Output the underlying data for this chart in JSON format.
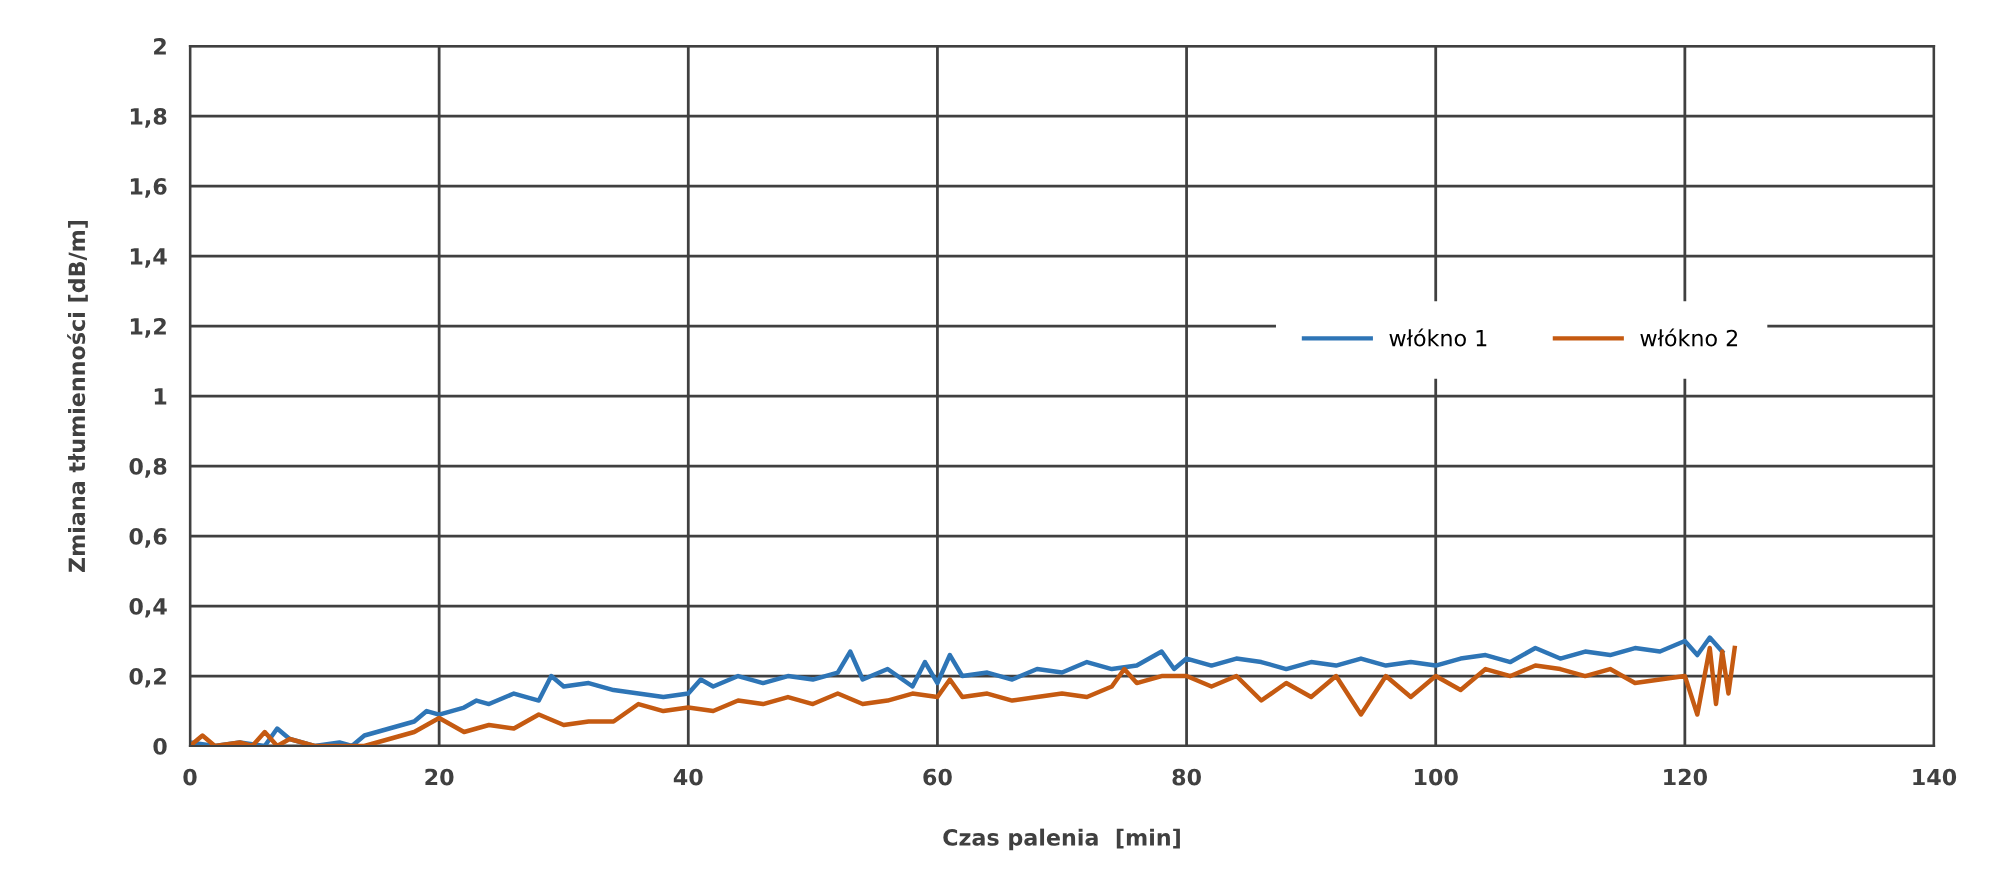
{
  "chart_data": {
    "type": "line",
    "xlabel": "Czas palenia  [min]",
    "ylabel": "Zmiana tłumienności [dB/m]",
    "xlim": [
      0,
      140
    ],
    "xticks": [
      0,
      20,
      40,
      60,
      80,
      100,
      120,
      140
    ],
    "ylim": [
      0,
      2
    ],
    "yticks": [
      0,
      {
        "value": 0.2,
        "label": "0,2"
      },
      {
        "value": 0.4,
        "label": "0,4"
      },
      {
        "value": 0.6,
        "label": "0,6"
      },
      {
        "value": 0.8,
        "label": "0,8"
      },
      1,
      {
        "value": 1.2,
        "label": "1,2"
      },
      {
        "value": 1.4,
        "label": "1,4"
      },
      {
        "value": 1.6,
        "label": "1,6"
      },
      {
        "value": 1.8,
        "label": "1,8"
      },
      2
    ],
    "grid": true,
    "legend": "right",
    "line_style": "solid",
    "marker": "none",
    "series": [
      {
        "name": "włókno 1",
        "color": "#2e75b6",
        "x": [
          0,
          2,
          4,
          6,
          7,
          8,
          10,
          12,
          13,
          14,
          16,
          18,
          19,
          20,
          22,
          23,
          24,
          26,
          28,
          29,
          30,
          32,
          34,
          36,
          38,
          40,
          41,
          42,
          44,
          46,
          48,
          50,
          52,
          53,
          54,
          56,
          58,
          59,
          60,
          61,
          62,
          64,
          66,
          68,
          70,
          72,
          74,
          76,
          78,
          79,
          80,
          82,
          84,
          86,
          88,
          90,
          92,
          94,
          96,
          98,
          100,
          102,
          104,
          106,
          108,
          110,
          112,
          114,
          116,
          118,
          120,
          121,
          122,
          123
        ],
        "values": [
          0.01,
          0.0,
          0.01,
          0.0,
          0.05,
          0.02,
          0.0,
          0.01,
          0.0,
          0.03,
          0.05,
          0.07,
          0.1,
          0.09,
          0.11,
          0.13,
          0.12,
          0.15,
          0.13,
          0.2,
          0.17,
          0.18,
          0.16,
          0.15,
          0.14,
          0.15,
          0.19,
          0.17,
          0.2,
          0.18,
          0.2,
          0.19,
          0.21,
          0.27,
          0.19,
          0.22,
          0.17,
          0.24,
          0.18,
          0.26,
          0.2,
          0.21,
          0.19,
          0.22,
          0.21,
          0.24,
          0.22,
          0.23,
          0.27,
          0.22,
          0.25,
          0.23,
          0.25,
          0.24,
          0.22,
          0.24,
          0.23,
          0.25,
          0.23,
          0.24,
          0.23,
          0.25,
          0.26,
          0.24,
          0.28,
          0.25,
          0.27,
          0.26,
          0.28,
          0.27,
          0.3,
          0.26,
          0.31,
          0.27
        ]
      },
      {
        "name": "włókno 2",
        "color": "#c55a11",
        "x": [
          0,
          1,
          2,
          4,
          5,
          6,
          7,
          8,
          10,
          12,
          14,
          16,
          18,
          20,
          22,
          24,
          26,
          28,
          30,
          32,
          34,
          36,
          38,
          40,
          42,
          44,
          46,
          48,
          50,
          52,
          54,
          56,
          58,
          60,
          61,
          62,
          64,
          66,
          68,
          70,
          72,
          74,
          75,
          76,
          78,
          80,
          82,
          84,
          86,
          88,
          90,
          92,
          94,
          96,
          98,
          100,
          102,
          104,
          106,
          108,
          110,
          112,
          114,
          116,
          118,
          120,
          121,
          122,
          122.5,
          123,
          123.5,
          124
        ],
        "values": [
          0.0,
          0.03,
          0.0,
          0.01,
          0.0,
          0.04,
          0.0,
          0.02,
          0.0,
          0.0,
          0.0,
          0.02,
          0.04,
          0.08,
          0.04,
          0.06,
          0.05,
          0.09,
          0.06,
          0.07,
          0.07,
          0.12,
          0.1,
          0.11,
          0.1,
          0.13,
          0.12,
          0.14,
          0.12,
          0.15,
          0.12,
          0.13,
          0.15,
          0.14,
          0.19,
          0.14,
          0.15,
          0.13,
          0.14,
          0.15,
          0.14,
          0.17,
          0.22,
          0.18,
          0.2,
          0.2,
          0.17,
          0.2,
          0.13,
          0.18,
          0.14,
          0.2,
          0.09,
          0.2,
          0.14,
          0.2,
          0.16,
          0.22,
          0.2,
          0.23,
          0.22,
          0.2,
          0.22,
          0.18,
          0.19,
          0.2,
          0.09,
          0.28,
          0.12,
          0.27,
          0.15,
          0.28
        ]
      }
    ]
  }
}
